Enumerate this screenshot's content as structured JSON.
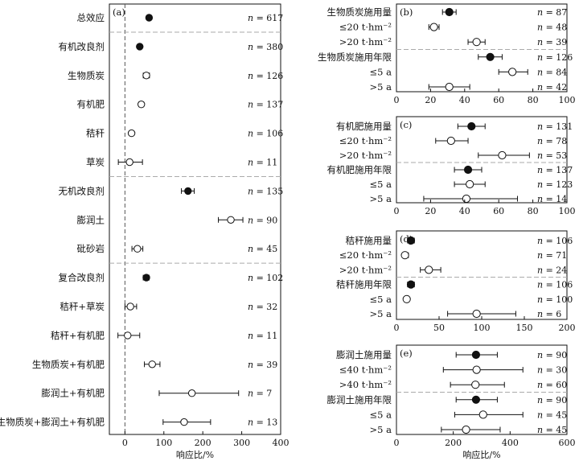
{
  "chart_data": [
    {
      "panel": "(a)",
      "type": "forest",
      "xlabel": "响应比/%",
      "xlim": [
        -40,
        400
      ],
      "xticks": [
        0,
        100,
        200,
        300,
        400
      ],
      "rows": [
        {
          "label": "总效应",
          "mean": 62,
          "lo": 59,
          "hi": 65,
          "n": "617",
          "filled": true
        },
        {
          "label": "有机改良剂",
          "mean": 38,
          "lo": 34,
          "hi": 42,
          "n": "380",
          "filled": true
        },
        {
          "label": "生物质炭",
          "mean": 55,
          "lo": 47,
          "hi": 63,
          "n": "126",
          "filled": false
        },
        {
          "label": "有机肥",
          "mean": 42,
          "lo": 36,
          "hi": 48,
          "n": "137",
          "filled": false
        },
        {
          "label": "秸秆",
          "mean": 17,
          "lo": 12,
          "hi": 22,
          "n": "106",
          "filled": false
        },
        {
          "label": "草炭",
          "mean": 12,
          "lo": -17,
          "hi": 45,
          "n": "11",
          "filled": false
        },
        {
          "label": "无机改良剂",
          "mean": 162,
          "lo": 145,
          "hi": 178,
          "n": "135",
          "filled": true
        },
        {
          "label": "膨润土",
          "mean": 272,
          "lo": 240,
          "hi": 303,
          "n": "90",
          "filled": false
        },
        {
          "label": "砒砂岩",
          "mean": 32,
          "lo": 18,
          "hi": 46,
          "n": "45",
          "filled": false
        },
        {
          "label": "复合改良剂",
          "mean": 55,
          "lo": 47,
          "hi": 62,
          "n": "102",
          "filled": true
        },
        {
          "label": "秸秆+草炭",
          "mean": 14,
          "lo": 0,
          "hi": 30,
          "n": "32",
          "filled": false
        },
        {
          "label": "秸秆+有机肥",
          "mean": 7,
          "lo": -18,
          "hi": 38,
          "n": "11",
          "filled": false
        },
        {
          "label": "生物质炭+有机肥",
          "mean": 70,
          "lo": 50,
          "hi": 90,
          "n": "39",
          "filled": false
        },
        {
          "label": "膨润土+有机肥",
          "mean": 172,
          "lo": 88,
          "hi": 292,
          "n": "7",
          "filled": false
        },
        {
          "label": "生物质炭+膨润土+有机肥",
          "mean": 152,
          "lo": 98,
          "hi": 220,
          "n": "13",
          "filled": false
        }
      ],
      "separators_after": [
        0,
        5,
        8
      ]
    },
    {
      "panel": "(b)",
      "type": "forest",
      "xlim": [
        0,
        100
      ],
      "xticks": [
        0,
        20,
        40,
        60,
        80,
        100
      ],
      "rows": [
        {
          "label": "生物质炭施用量",
          "mean": 31,
          "lo": 27,
          "hi": 35,
          "n": "87",
          "filled": true
        },
        {
          "label": "≤20 t·hm⁻²",
          "mean": 22,
          "lo": 19,
          "hi": 25,
          "n": "48",
          "filled": false
        },
        {
          "label": ">20 t·hm⁻²",
          "mean": 47,
          "lo": 42,
          "hi": 52,
          "n": "39",
          "filled": false
        },
        {
          "label": "生物质炭施用年限",
          "mean": 55,
          "lo": 48,
          "hi": 62,
          "n": "126",
          "filled": true
        },
        {
          "label": "≤5 a",
          "mean": 68,
          "lo": 60,
          "hi": 77,
          "n": "84",
          "filled": false
        },
        {
          "label": ">5 a",
          "mean": 31,
          "lo": 19,
          "hi": 43,
          "n": "42",
          "filled": false
        }
      ],
      "separators_after": [
        2
      ]
    },
    {
      "panel": "(c)",
      "type": "forest",
      "xlim": [
        0,
        100
      ],
      "xticks": [
        0,
        20,
        40,
        60,
        80,
        100
      ],
      "rows": [
        {
          "label": "有机肥施用量",
          "mean": 44,
          "lo": 36,
          "hi": 52,
          "n": "131",
          "filled": true
        },
        {
          "label": "≤20 t·hm⁻²",
          "mean": 32,
          "lo": 23,
          "hi": 42,
          "n": "78",
          "filled": false
        },
        {
          "label": ">20 t·hm⁻²",
          "mean": 62,
          "lo": 48,
          "hi": 78,
          "n": "53",
          "filled": false
        },
        {
          "label": "有机肥施用年限",
          "mean": 42,
          "lo": 34,
          "hi": 50,
          "n": "137",
          "filled": true
        },
        {
          "label": "≤5 a",
          "mean": 43,
          "lo": 34,
          "hi": 52,
          "n": "123",
          "filled": false
        },
        {
          "label": ">5 a",
          "mean": 41,
          "lo": 16,
          "hi": 71,
          "n": "14",
          "filled": false
        }
      ],
      "separators_after": [
        2
      ]
    },
    {
      "panel": "(d)",
      "type": "forest",
      "xlim": [
        0,
        200
      ],
      "xticks": [
        0,
        50,
        100,
        150,
        200
      ],
      "rows": [
        {
          "label": "秸秆施用量",
          "mean": 17,
          "lo": 13,
          "hi": 21,
          "n": "106",
          "filled": true
        },
        {
          "label": "≤20 t·hm⁻²",
          "mean": 10,
          "lo": 7,
          "hi": 14,
          "n": "71",
          "filled": false
        },
        {
          "label": ">20 t·hm⁻²",
          "mean": 38,
          "lo": 28,
          "hi": 52,
          "n": "24",
          "filled": false
        },
        {
          "label": "秸秆施用年限",
          "mean": 17,
          "lo": 13,
          "hi": 21,
          "n": "106",
          "filled": true
        },
        {
          "label": "≤5 a",
          "mean": 12,
          "lo": 9,
          "hi": 15,
          "n": "100",
          "filled": false
        },
        {
          "label": ">5 a",
          "mean": 94,
          "lo": 60,
          "hi": 140,
          "n": "6",
          "filled": false
        }
      ],
      "separators_after": [
        2
      ]
    },
    {
      "panel": "(e)",
      "type": "forest",
      "xlabel": "响应比/%",
      "xlim": [
        0,
        600
      ],
      "xticks": [
        0,
        200,
        400,
        600
      ],
      "rows": [
        {
          "label": "膨润土施用量",
          "mean": 280,
          "lo": 210,
          "hi": 355,
          "n": "90",
          "filled": true
        },
        {
          "label": "≤40 t·hm⁻²",
          "mean": 282,
          "lo": 165,
          "hi": 445,
          "n": "30",
          "filled": false
        },
        {
          "label": ">40 t·hm⁻²",
          "mean": 278,
          "lo": 190,
          "hi": 380,
          "n": "60",
          "filled": false
        },
        {
          "label": "膨润土施用年限",
          "mean": 280,
          "lo": 210,
          "hi": 355,
          "n": "90",
          "filled": true
        },
        {
          "label": "≤5 a",
          "mean": 305,
          "lo": 205,
          "hi": 445,
          "n": "45",
          "filled": false
        },
        {
          "label": ">5 a",
          "mean": 245,
          "lo": 158,
          "hi": 365,
          "n": "45",
          "filled": false
        }
      ],
      "separators_after": [
        2
      ]
    }
  ]
}
